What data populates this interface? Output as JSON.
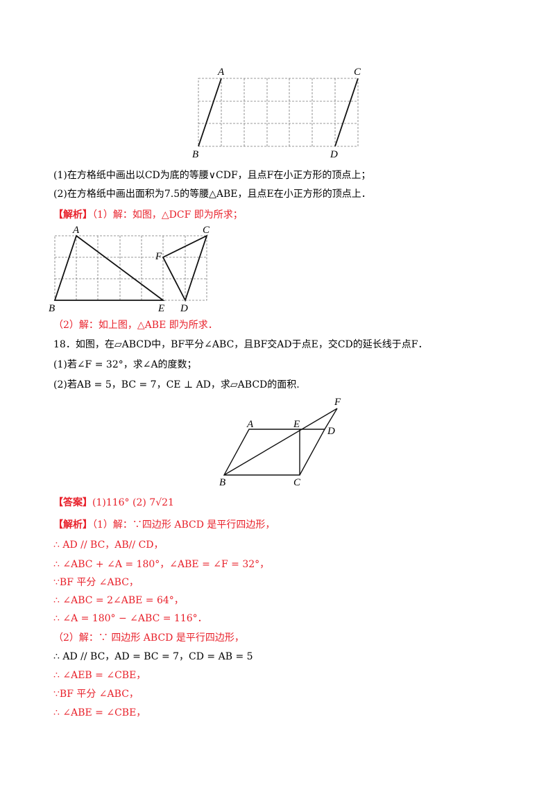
{
  "figure1": {
    "labels": {
      "A": "A",
      "B": "B",
      "C": "C",
      "D": "D"
    }
  },
  "q17": {
    "part1": "(1)在方格纸中画出以CD为底的等腰∨CDF，且点F在小正方形的顶点上；",
    "part2": "(2)在方格纸中画出面积为7.5的等腰△ABE，且点E在小正方形的顶点上．"
  },
  "sol17": {
    "tag": "【解析】",
    "part1": "（1）解：如图，△DCF 即为所求；",
    "part2": "（2）解：如上图，△ABE 即为所求．"
  },
  "figure2": {
    "labels": {
      "A": "A",
      "B": "B",
      "C": "C",
      "D": "D",
      "E": "E",
      "F": "F"
    }
  },
  "q18": {
    "stem": "18．如图，在▱ABCD中，BF平分∠ABC，且BF交AD于点E，交CD的延长线于点F．",
    "part1": "(1)若∠F = 32°，求∠A的度数；",
    "part2": "(2)若AB = 5，BC = 7，CE ⊥ AD，求▱ABCD的面积."
  },
  "figure3": {
    "labels": {
      "A": "A",
      "B": "B",
      "C": "C",
      "D": "D",
      "E": "E",
      "F": "F"
    }
  },
  "answer18": {
    "tag": "【答案】",
    "value": "(1)116° (2) 7√21"
  },
  "sol18": {
    "tag": "【解析】",
    "lines": [
      "（1）解：∵四边形 ABCD 是平行四边形，",
      "∴ AD // BC，AB// CD，",
      "∴ ∠ABC + ∠A = 180°，∠ABE = ∠F = 32°，",
      "∵BF 平分 ∠ABC，",
      "∴ ∠ABC = 2∠ABE = 64°，",
      "∴ ∠A = 180° − ∠ABC = 116°．",
      "（2）解：∵ 四边形 ABCD 是平行四边形，",
      "∴ AD // BC，AD = BC = 7，CD = AB = 5",
      "∴ ∠AEB = ∠CBE，",
      "∵BF 平分 ∠ABC，",
      "∴ ∠ABE = ∠CBE，"
    ]
  }
}
